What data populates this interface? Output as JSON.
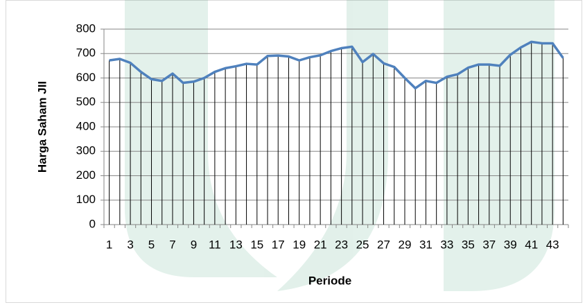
{
  "chart_data": {
    "type": "line",
    "x_label": "Periode",
    "y_label": "Harga Saham JII",
    "categories": [
      1,
      null,
      3,
      null,
      5,
      null,
      7,
      null,
      9,
      null,
      11,
      null,
      13,
      null,
      15,
      null,
      17,
      null,
      19,
      null,
      21,
      null,
      23,
      null,
      25,
      null,
      27,
      null,
      29,
      null,
      31,
      null,
      33,
      null,
      35,
      null,
      37,
      null,
      39,
      null,
      41,
      null,
      43,
      null
    ],
    "values": [
      672,
      678,
      662,
      625,
      595,
      588,
      618,
      580,
      585,
      600,
      625,
      640,
      648,
      658,
      655,
      690,
      692,
      688,
      672,
      685,
      693,
      710,
      722,
      728,
      665,
      698,
      660,
      645,
      600,
      558,
      588,
      580,
      605,
      615,
      642,
      655,
      655,
      650,
      695,
      725,
      748,
      742,
      742,
      682
    ],
    "color": "#4f81bd",
    "drop_lines": true,
    "ylim": [
      0,
      800
    ],
    "yticks": [
      0,
      100,
      200,
      300,
      400,
      500,
      600,
      700,
      800
    ],
    "grid": true
  }
}
